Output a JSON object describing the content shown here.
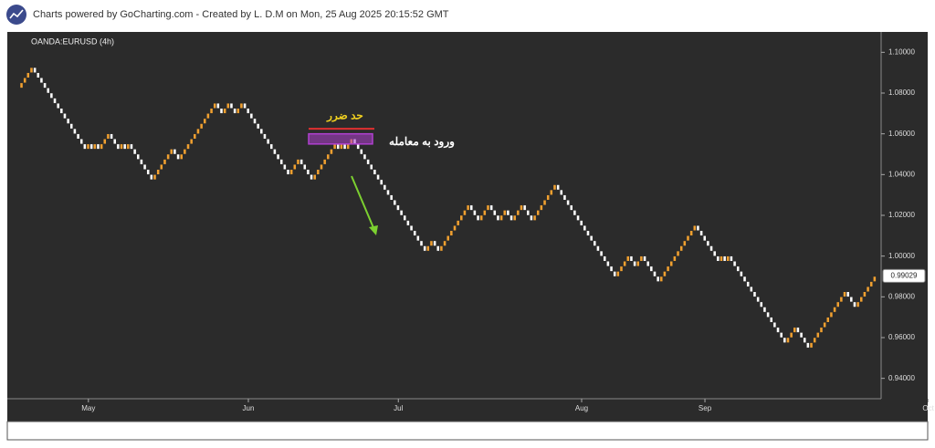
{
  "chart_data": {
    "type": "renko",
    "title": "Charts powered by GoCharting.com - Created by L. D.M on Mon, 25 Aug 2025 20:15:52 GMT",
    "symbol": "OANDA:EURUSD (4h)",
    "brick_size": 0.0025,
    "up_color": "#f0a030",
    "down_color": "#ffffff",
    "values": [
      1.085,
      1.0875,
      1.09,
      1.0925,
      1.09,
      1.0875,
      1.085,
      1.0825,
      1.08,
      1.0775,
      1.075,
      1.0725,
      1.07,
      1.0675,
      1.065,
      1.0625,
      1.06,
      1.0575,
      1.055,
      1.0525,
      1.055,
      1.0525,
      1.055,
      1.0525,
      1.055,
      1.0575,
      1.06,
      1.0575,
      1.055,
      1.0525,
      1.055,
      1.0525,
      1.055,
      1.0525,
      1.05,
      1.0475,
      1.045,
      1.0425,
      1.04,
      1.0375,
      1.04,
      1.0425,
      1.045,
      1.0475,
      1.05,
      1.0525,
      1.05,
      1.0475,
      1.05,
      1.0525,
      1.055,
      1.0575,
      1.06,
      1.0625,
      1.065,
      1.0675,
      1.07,
      1.0725,
      1.075,
      1.0725,
      1.07,
      1.0725,
      1.075,
      1.0725,
      1.07,
      1.0725,
      1.075,
      1.0725,
      1.07,
      1.0675,
      1.065,
      1.0625,
      1.06,
      1.0575,
      1.055,
      1.0525,
      1.05,
      1.0475,
      1.045,
      1.0425,
      1.04,
      1.0425,
      1.045,
      1.0475,
      1.045,
      1.0425,
      1.04,
      1.0375,
      1.04,
      1.0425,
      1.045,
      1.0475,
      1.05,
      1.0525,
      1.055,
      1.0525,
      1.055,
      1.0525,
      1.055,
      1.0575,
      1.055,
      1.0525,
      1.05,
      1.0475,
      1.045,
      1.0425,
      1.04,
      1.0375,
      1.035,
      1.0325,
      1.03,
      1.0275,
      1.025,
      1.0225,
      1.02,
      1.0175,
      1.015,
      1.0125,
      1.01,
      1.0075,
      1.005,
      1.0025,
      1.005,
      1.0075,
      1.005,
      1.0025,
      1.005,
      1.0075,
      1.01,
      1.0125,
      1.015,
      1.0175,
      1.02,
      1.0225,
      1.025,
      1.0225,
      1.02,
      1.0175,
      1.02,
      1.0225,
      1.025,
      1.0225,
      1.02,
      1.0175,
      1.02,
      1.0225,
      1.02,
      1.0175,
      1.02,
      1.0225,
      1.025,
      1.0225,
      1.02,
      1.0175,
      1.02,
      1.0225,
      1.025,
      1.0275,
      1.03,
      1.0325,
      1.035,
      1.0325,
      1.03,
      1.0275,
      1.025,
      1.0225,
      1.02,
      1.0175,
      1.015,
      1.0125,
      1.01,
      1.0075,
      1.005,
      1.0025,
      1.0,
      0.9975,
      0.995,
      0.9925,
      0.99,
      0.9925,
      0.995,
      0.9975,
      1.0,
      0.9975,
      0.995,
      0.9975,
      1.0,
      0.9975,
      0.995,
      0.9925,
      0.99,
      0.9875,
      0.99,
      0.9925,
      0.995,
      0.9975,
      1.0,
      1.0025,
      1.005,
      1.0075,
      1.01,
      1.0125,
      1.015,
      1.0125,
      1.01,
      1.0075,
      1.005,
      1.0025,
      1.0,
      0.9975,
      1.0,
      0.9975,
      1.0,
      0.9975,
      0.995,
      0.9925,
      0.99,
      0.9875,
      0.985,
      0.9825,
      0.98,
      0.9775,
      0.975,
      0.9725,
      0.97,
      0.9675,
      0.965,
      0.9625,
      0.96,
      0.9575,
      0.96,
      0.9625,
      0.965,
      0.9625,
      0.96,
      0.9575,
      0.955,
      0.9575,
      0.96,
      0.9625,
      0.965,
      0.9675,
      0.97,
      0.9725,
      0.975,
      0.9775,
      0.98,
      0.9825,
      0.98,
      0.9775,
      0.975,
      0.9775,
      0.98,
      0.9825,
      0.985,
      0.9875,
      0.99
    ],
    "ylim": [
      0.93,
      1.11
    ],
    "yticks": [
      {
        "value": 0.94,
        "label": "0.94000"
      },
      {
        "value": 0.96,
        "label": "0.96000"
      },
      {
        "value": 0.98,
        "label": "0.98000"
      },
      {
        "value": 1.0,
        "label": "1.00000"
      },
      {
        "value": 1.02,
        "label": "1.02000"
      },
      {
        "value": 1.04,
        "label": "1.04000"
      },
      {
        "value": 1.06,
        "label": "1.06000"
      },
      {
        "value": 1.08,
        "label": "1.08000"
      },
      {
        "value": 1.1,
        "label": "1.10000"
      }
    ],
    "xticks": [
      {
        "value": 20,
        "label": "May"
      },
      {
        "value": 68,
        "label": "Jun"
      },
      {
        "value": 113,
        "label": "Jul"
      },
      {
        "value": 168,
        "label": "Aug"
      },
      {
        "value": 205,
        "label": "Sep"
      },
      {
        "value": 272,
        "label": "Oct"
      }
    ],
    "last_price": 0.99029,
    "stop_loss": {
      "label": "حد ضرر",
      "value": 1.0625,
      "color": "#e03030",
      "label_color": "#f0d020"
    },
    "entry_zone": {
      "label": "ورود به معامله",
      "range": [
        1.055,
        1.06
      ],
      "color": "#b040d0"
    }
  }
}
